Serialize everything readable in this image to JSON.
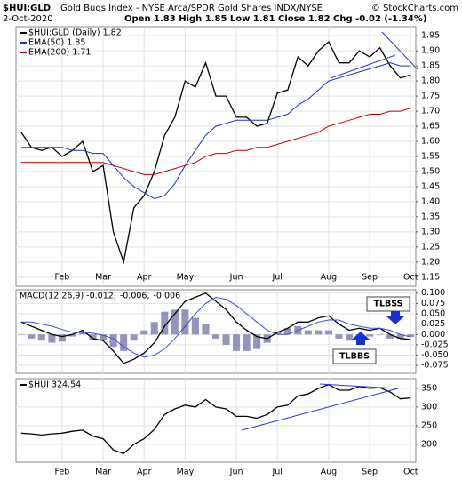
{
  "chart_data": [
    {
      "type": "line",
      "title": "$HUI:GLD",
      "subtitle": "Gold Bugs Index - NYSE Arca/SPDR Gold Shares INDX/NYSE",
      "credit": "© StockCharts.com",
      "date": "2-Oct-2020",
      "ohlc": "Open 1.83 High 1.85 Low 1.81 Close 1.82 Chg -0.02 (-1.34%)",
      "categories": [
        null,
        null,
        null,
        null,
        "Feb",
        null,
        null,
        null,
        "Mar",
        null,
        null,
        null,
        "Apr",
        null,
        null,
        null,
        "May",
        null,
        null,
        null,
        null,
        "Jun",
        null,
        null,
        null,
        "Jul",
        null,
        null,
        null,
        null,
        "Aug",
        null,
        null,
        null,
        "Sep",
        null,
        null,
        null,
        "Oct"
      ],
      "series": [
        {
          "name": "$HUI:GLD (Daily) 1.82",
          "color": "#000000",
          "values": [
            1.63,
            1.58,
            1.57,
            1.58,
            1.55,
            1.57,
            1.6,
            1.5,
            1.52,
            1.3,
            1.2,
            1.38,
            1.42,
            1.5,
            1.62,
            1.68,
            1.8,
            1.78,
            1.86,
            1.75,
            1.75,
            1.68,
            1.68,
            1.65,
            1.66,
            1.76,
            1.77,
            1.88,
            1.85,
            1.9,
            1.93,
            1.86,
            1.86,
            1.9,
            1.88,
            1.91,
            1.85,
            1.81,
            1.82
          ]
        },
        {
          "name": "EMA(50) 1.85",
          "color": "#1a35b5",
          "values": [
            1.58,
            1.58,
            1.58,
            1.58,
            1.58,
            1.57,
            1.57,
            1.56,
            1.56,
            1.52,
            1.48,
            1.45,
            1.43,
            1.41,
            1.42,
            1.46,
            1.52,
            1.57,
            1.62,
            1.65,
            1.66,
            1.67,
            1.67,
            1.67,
            1.67,
            1.68,
            1.69,
            1.72,
            1.74,
            1.77,
            1.8,
            1.81,
            1.82,
            1.83,
            1.84,
            1.85,
            1.86,
            1.85,
            1.85
          ]
        },
        {
          "name": "EMA(200) 1.71",
          "color": "#c00000",
          "values": [
            1.53,
            1.53,
            1.53,
            1.53,
            1.53,
            1.53,
            1.53,
            1.53,
            1.53,
            1.52,
            1.51,
            1.5,
            1.49,
            1.49,
            1.5,
            1.51,
            1.52,
            1.53,
            1.55,
            1.56,
            1.56,
            1.57,
            1.57,
            1.58,
            1.58,
            1.59,
            1.6,
            1.61,
            1.62,
            1.63,
            1.65,
            1.66,
            1.67,
            1.68,
            1.69,
            1.69,
            1.7,
            1.7,
            1.71
          ]
        }
      ],
      "ylim": [
        1.12,
        1.98
      ],
      "yticks": [
        1.15,
        {
          "value": 1.2,
          "label": "1.20"
        },
        1.25,
        {
          "value": 1.3,
          "label": "1.30"
        },
        1.35,
        {
          "value": 1.4,
          "label": "1.40"
        },
        1.45,
        {
          "value": 1.5,
          "label": "1.50"
        },
        1.55,
        {
          "value": 1.6,
          "label": "1.60"
        },
        1.65,
        {
          "value": 1.7,
          "label": "1.70"
        },
        1.75,
        {
          "value": 1.8,
          "label": "1.80"
        },
        1.85,
        {
          "value": 1.9,
          "label": "1.90"
        },
        1.95
      ],
      "grid": true
    },
    {
      "type": "line",
      "series": [
        {
          "name": "MACD(12,26,9) -0.012,",
          "color": "#000000",
          "values": [
            0.03,
            0.02,
            0.01,
            0,
            -0.005,
            0,
            0.01,
            -0.01,
            -0.015,
            -0.04,
            -0.07,
            -0.06,
            -0.045,
            -0.02,
            0.02,
            0.05,
            0.08,
            0.09,
            0.1,
            0.08,
            0.06,
            0.03,
            0.01,
            -0.005,
            -0.01,
            0.005,
            0.015,
            0.03,
            0.03,
            0.04,
            0.045,
            0.025,
            0.01,
            0.015,
            0.01,
            0.015,
            0,
            -0.01,
            -0.012
          ]
        },
        {
          "name": "-0.006,",
          "color": "#3a4fd0",
          "values": [
            0.03,
            0.03,
            0.025,
            0.02,
            0.012,
            0.005,
            0.005,
            0.003,
            -0.002,
            -0.01,
            -0.03,
            -0.045,
            -0.055,
            -0.05,
            -0.035,
            -0.01,
            0.02,
            0.05,
            0.075,
            0.09,
            0.085,
            0.07,
            0.05,
            0.03,
            0.01,
            0,
            0,
            0.01,
            0.02,
            0.03,
            0.035,
            0.035,
            0.025,
            0.02,
            0.015,
            0.015,
            0.01,
            0,
            -0.006
          ]
        },
        {
          "name": "-0.006",
          "color": "#7070a8",
          "type": "bar",
          "values": [
            0,
            -0.01,
            -0.015,
            -0.02,
            -0.017,
            -0.005,
            0.005,
            -0.013,
            -0.013,
            -0.03,
            -0.04,
            -0.015,
            0.01,
            0.03,
            0.055,
            0.06,
            0.06,
            0.04,
            0.025,
            -0.01,
            -0.025,
            -0.04,
            -0.04,
            -0.035,
            -0.02,
            0.005,
            0.015,
            0.02,
            0.01,
            0.01,
            0.01,
            -0.01,
            -0.015,
            -0.005,
            -0.005,
            0,
            -0.01,
            -0.01,
            -0.006
          ]
        }
      ],
      "annotations": [
        "TLBSS",
        "TLBBS"
      ],
      "ylim": [
        -0.094,
        0.108
      ],
      "yticks": [
        {
          "value": 0.1,
          "label": "0.100"
        },
        0.075,
        {
          "value": 0.05,
          "label": "0.050"
        },
        0.025,
        {
          "value": 0,
          "label": "0.000"
        },
        -0.025,
        {
          "value": -0.05,
          "label": "-0.050"
        },
        -0.075
      ],
      "grid": true
    },
    {
      "type": "line",
      "series": [
        {
          "name": "$HUI 324.54",
          "color": "#000000",
          "values": [
            230,
            228,
            225,
            228,
            230,
            235,
            238,
            222,
            215,
            185,
            175,
            200,
            215,
            240,
            280,
            295,
            305,
            300,
            320,
            300,
            295,
            275,
            275,
            270,
            280,
            300,
            305,
            330,
            335,
            350,
            360,
            345,
            345,
            355,
            350,
            352,
            340,
            322,
            324.54
          ]
        }
      ],
      "ylim": [
        152,
        376
      ],
      "yticks": [
        200,
        250,
        300,
        350
      ],
      "grid": true
    }
  ]
}
